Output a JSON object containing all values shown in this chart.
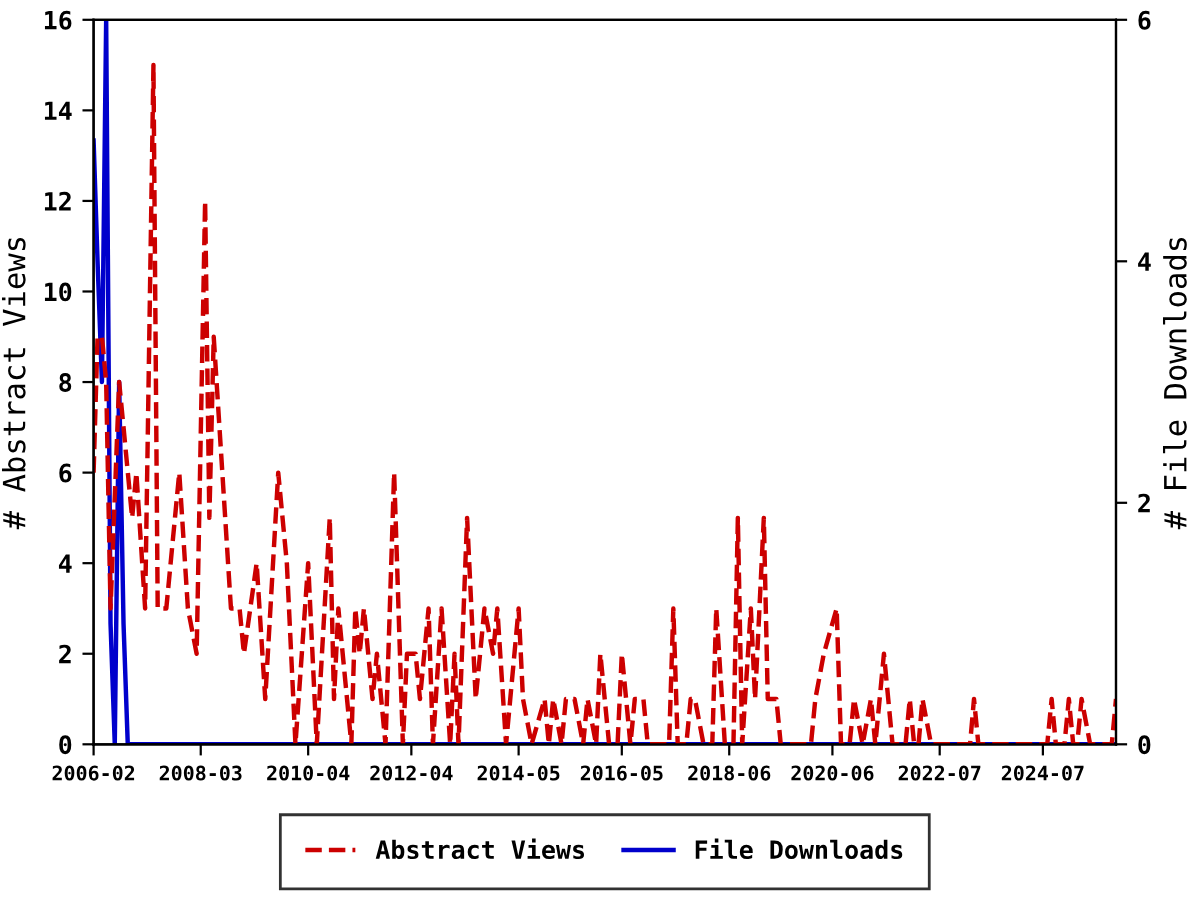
{
  "chart_data": {
    "type": "line",
    "ylabel": "# Abstract Views",
    "y2label": "# File Downloads",
    "xlim": [
      "2006-02",
      "2025-12"
    ],
    "xticks": [
      "2006-02",
      "2008-03",
      "2010-04",
      "2012-04",
      "2014-05",
      "2016-05",
      "2018-06",
      "2020-06",
      "2022-07",
      "2024-07"
    ],
    "ylim": [
      0,
      16
    ],
    "yticks": [
      0,
      2,
      4,
      6,
      8,
      10,
      12,
      14,
      16
    ],
    "y2lim": [
      0,
      6
    ],
    "y2ticks": [
      0,
      2,
      4,
      6
    ],
    "grid": false,
    "legend": "bottom",
    "series": [
      {
        "name": "Abstract Views",
        "color": "#cc0000",
        "line_style": "dashed",
        "x": [
          "2006-02",
          "2006-03",
          "2006-04",
          "2006-05",
          "2006-06",
          "2006-08",
          "2006-09",
          "2006-11",
          "2006-12",
          "2007-02",
          "2007-04",
          "2007-05",
          "2007-07",
          "2007-10",
          "2007-12",
          "2008-02",
          "2008-04",
          "2008-05",
          "2008-06",
          "2008-08",
          "2008-10",
          "2008-12",
          "2009-01",
          "2009-04",
          "2009-06",
          "2009-09",
          "2009-11",
          "2010-01",
          "2010-04",
          "2010-06",
          "2010-09",
          "2010-10",
          "2010-11",
          "2011-02",
          "2011-03",
          "2011-04",
          "2011-05",
          "2011-07",
          "2011-08",
          "2011-10",
          "2011-12",
          "2012-02",
          "2012-03",
          "2012-05",
          "2012-06",
          "2012-08",
          "2012-09",
          "2012-11",
          "2013-01",
          "2013-02",
          "2013-03",
          "2013-05",
          "2013-07",
          "2013-09",
          "2013-11",
          "2013-12",
          "2014-02",
          "2014-05",
          "2014-06",
          "2014-08",
          "2014-11",
          "2014-12",
          "2015-01",
          "2015-03",
          "2015-04",
          "2015-06",
          "2015-08",
          "2015-09",
          "2015-11",
          "2015-12",
          "2016-02",
          "2016-04",
          "2016-05",
          "2016-07",
          "2016-08",
          "2016-10",
          "2016-11",
          "2017-04",
          "2017-05",
          "2017-06",
          "2017-08",
          "2017-09",
          "2017-10",
          "2017-12",
          "2018-02",
          "2018-03",
          "2018-05",
          "2018-07",
          "2018-08",
          "2018-09",
          "2018-11",
          "2018-12",
          "2019-02",
          "2019-03",
          "2019-05",
          "2019-06",
          "2020-01",
          "2020-02",
          "2020-04",
          "2020-07",
          "2020-08",
          "2020-10",
          "2020-11",
          "2021-01",
          "2021-03",
          "2021-04",
          "2021-06",
          "2021-08",
          "2021-11",
          "2021-12",
          "2022-01",
          "2022-02",
          "2022-03",
          "2022-05",
          "2023-02",
          "2023-03",
          "2023-04",
          "2024-08",
          "2024-09",
          "2024-10",
          "2024-12",
          "2025-01",
          "2025-02",
          "2025-03",
          "2025-04",
          "2025-06",
          "2025-11",
          "2025-12"
        ],
        "values": [
          6,
          9,
          9,
          8,
          3,
          8,
          7,
          5,
          6,
          3,
          15,
          3,
          3,
          6,
          3,
          2,
          12,
          5,
          9,
          6,
          3,
          3,
          2,
          4,
          1,
          6,
          4,
          0,
          4,
          0,
          5,
          1,
          3,
          0,
          3,
          2,
          3,
          1,
          2,
          0,
          6,
          0,
          2,
          2,
          1,
          3,
          0,
          3,
          0,
          2,
          0,
          5,
          1,
          3,
          2,
          3,
          0,
          3,
          1,
          0,
          1,
          0,
          1,
          0,
          1,
          1,
          0,
          1,
          0,
          2,
          0,
          0,
          2,
          0,
          1,
          1,
          0,
          0,
          3,
          0,
          0,
          1,
          1,
          0,
          0,
          3,
          0,
          0,
          5,
          0,
          3,
          1,
          5,
          1,
          1,
          0,
          0,
          1,
          2,
          3,
          0,
          0,
          1,
          0,
          1,
          0,
          2,
          0,
          0,
          1,
          0,
          0,
          1,
          0,
          0,
          1,
          0,
          0,
          1,
          0,
          0,
          1,
          0,
          0,
          1,
          0,
          0,
          1
        ]
      },
      {
        "name": "File Downloads",
        "color": "#0000cc",
        "line_style": "solid",
        "axis": "y2",
        "x": [
          "2006-02",
          "2006-03",
          "2006-04",
          "2006-05",
          "2006-06",
          "2006-07",
          "2006-08",
          "2006-09",
          "2006-10",
          "2025-12"
        ],
        "values": [
          5,
          4,
          3,
          6,
          1,
          0,
          3,
          1,
          0,
          0
        ]
      }
    ]
  }
}
